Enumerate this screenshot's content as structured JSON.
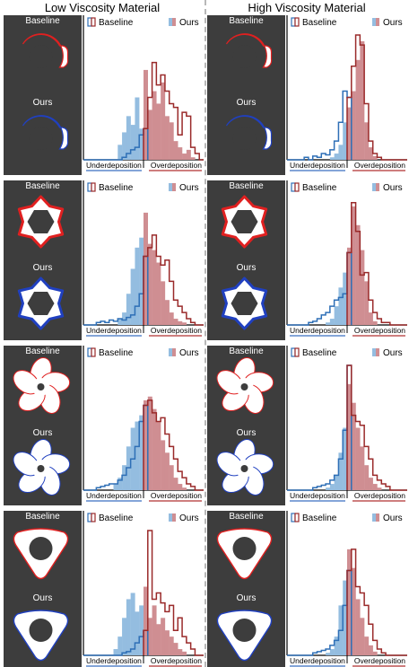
{
  "header": {
    "left_title": "Low Viscosity Material",
    "right_title": "High Viscosity Material"
  },
  "labels": {
    "baseline": "Baseline",
    "ours": "Ours",
    "legend_baseline": "Baseline",
    "legend_ours": "Ours",
    "under": "Underdeposition",
    "over": "Overdeposition"
  },
  "colors": {
    "panel_bg": "#3d3d3d",
    "baseline_outline": "#e02020",
    "ours_outline": "#2040c0",
    "hist_baseline_under": "#2e6fb6",
    "hist_baseline_over": "#9a2a2a",
    "hist_ours_under": "#94bde0",
    "hist_ours_over": "#cf8e92",
    "under_axis": "#3a6fc0",
    "over_axis": "#b03030"
  },
  "chart_data": [
    {
      "row": 0,
      "col": "low",
      "shape": "ring-notch",
      "type": "bar",
      "ours": [
        0,
        0,
        0,
        0,
        0,
        0,
        0,
        0,
        0.12,
        0.22,
        0.35,
        0.28,
        0.5,
        0.25,
        0.72,
        0.4,
        0.55,
        0.45,
        0.62,
        0.35,
        0.3,
        0.15,
        0.1,
        0.05,
        0.08,
        0.02,
        0,
        0
      ],
      "baseline": [
        0,
        0,
        0,
        0,
        0,
        0,
        0,
        0,
        0,
        0.02,
        0.05,
        0.08,
        0.1,
        0.2,
        0.25,
        0.5,
        0.78,
        0.6,
        0.68,
        0.55,
        0.45,
        0.42,
        0.2,
        0.38,
        0.35,
        0.1,
        0.05,
        0
      ]
    },
    {
      "row": 0,
      "col": "high",
      "shape": "ring-notch",
      "type": "bar",
      "ours": [
        0,
        0,
        0,
        0,
        0,
        0,
        0,
        0,
        0,
        0,
        0.02,
        0.05,
        0.12,
        0.3,
        0.42,
        0.55,
        0.8,
        0.95,
        0.3,
        0.1,
        0.03,
        0,
        0,
        0,
        0,
        0,
        0,
        0
      ],
      "baseline": [
        0,
        0,
        0,
        0,
        0.02,
        0,
        0.03,
        0.02,
        0.05,
        0.04,
        0.08,
        0.15,
        0.3,
        0.55,
        0.5,
        0.75,
        1.0,
        0.92,
        0.45,
        0.15,
        0.05,
        0.02,
        0,
        0,
        0,
        0,
        0,
        0
      ]
    },
    {
      "row": 1,
      "col": "low",
      "shape": "hexagon-gear",
      "type": "bar",
      "ours": [
        0,
        0,
        0,
        0,
        0,
        0,
        0,
        0,
        0.05,
        0.1,
        0.25,
        0.45,
        0.62,
        0.7,
        0.9,
        0.65,
        0.6,
        0.5,
        0.35,
        0.2,
        0.1,
        0.05,
        0.03,
        0.02,
        0,
        0,
        0,
        0
      ],
      "baseline": [
        0,
        0,
        0,
        0.02,
        0.03,
        0.02,
        0.04,
        0.03,
        0.05,
        0.04,
        0.06,
        0.08,
        0.15,
        0.25,
        0.55,
        0.62,
        0.72,
        0.55,
        0.48,
        0.52,
        0.35,
        0.2,
        0.15,
        0.1,
        0.05,
        0.02,
        0,
        0
      ]
    },
    {
      "row": 1,
      "col": "high",
      "shape": "hexagon-gear",
      "type": "bar",
      "ours": [
        0,
        0,
        0,
        0,
        0,
        0,
        0,
        0,
        0,
        0.02,
        0.05,
        0.15,
        0.3,
        0.42,
        0.62,
        0.95,
        0.8,
        0.6,
        0.35,
        0.1,
        0.03,
        0,
        0,
        0,
        0,
        0,
        0,
        0
      ],
      "baseline": [
        0,
        0,
        0,
        0,
        0,
        0.02,
        0.03,
        0.05,
        0.08,
        0.1,
        0.15,
        0.2,
        0.22,
        0.25,
        0.58,
        0.98,
        0.75,
        0.4,
        0.42,
        0.2,
        0.1,
        0.05,
        0.02,
        0.02,
        0,
        0,
        0,
        0
      ]
    },
    {
      "row": 2,
      "col": "low",
      "shape": "fan-blades",
      "type": "bar",
      "ours": [
        0,
        0,
        0,
        0,
        0,
        0,
        0,
        0.05,
        0.1,
        0.2,
        0.35,
        0.5,
        0.55,
        0.6,
        0.72,
        0.75,
        0.65,
        0.55,
        0.4,
        0.3,
        0.2,
        0.1,
        0.05,
        0.02,
        0,
        0,
        0,
        0
      ],
      "baseline": [
        0,
        0,
        0,
        0.02,
        0.03,
        0.04,
        0.05,
        0.05,
        0.08,
        0.12,
        0.18,
        0.25,
        0.35,
        0.55,
        0.68,
        0.72,
        0.62,
        0.55,
        0.58,
        0.45,
        0.35,
        0.25,
        0.15,
        0.1,
        0.05,
        0.03,
        0,
        0
      ]
    },
    {
      "row": 2,
      "col": "high",
      "shape": "fan-blades",
      "type": "bar",
      "ours": [
        0,
        0,
        0,
        0,
        0,
        0,
        0,
        0,
        0,
        0.02,
        0.05,
        0.12,
        0.3,
        0.5,
        0.85,
        0.7,
        0.5,
        0.35,
        0.2,
        0.1,
        0.05,
        0.02,
        0,
        0,
        0,
        0,
        0,
        0
      ],
      "baseline": [
        0,
        0,
        0,
        0,
        0,
        0,
        0.02,
        0.03,
        0.04,
        0.05,
        0.08,
        0.12,
        0.25,
        0.48,
        1.0,
        0.6,
        0.55,
        0.52,
        0.35,
        0.25,
        0.12,
        0.08,
        0.05,
        0.03,
        0,
        0,
        0,
        0
      ]
    },
    {
      "row": 3,
      "col": "low",
      "shape": "rounded-triangle",
      "type": "bar",
      "ours": [
        0,
        0,
        0,
        0,
        0,
        0,
        0,
        0.05,
        0.15,
        0.3,
        0.45,
        0.5,
        0.35,
        0.4,
        0.55,
        0.3,
        0.4,
        0.25,
        0.3,
        0.2,
        0.15,
        0.1,
        0.05,
        0.03,
        0,
        0,
        0,
        0
      ],
      "baseline": [
        0,
        0,
        0,
        0,
        0,
        0,
        0,
        0,
        0,
        0.02,
        0.03,
        0.05,
        0.1,
        0.15,
        0.2,
        1.0,
        0.45,
        0.5,
        0.42,
        0.35,
        0.4,
        0.2,
        0.3,
        0.15,
        0.1,
        0.05,
        0,
        0
      ]
    },
    {
      "row": 3,
      "col": "high",
      "shape": "rounded-triangle",
      "type": "bar",
      "ours": [
        0,
        0,
        0,
        0,
        0,
        0,
        0,
        0,
        0,
        0.02,
        0.05,
        0.15,
        0.4,
        0.6,
        0.85,
        0.7,
        0.45,
        0.3,
        0.15,
        0.08,
        0.03,
        0,
        0,
        0,
        0,
        0,
        0,
        0
      ],
      "baseline": [
        0,
        0,
        0,
        0,
        0,
        0,
        0.02,
        0.03,
        0.04,
        0.05,
        0.08,
        0.12,
        0.2,
        0.4,
        0.68,
        0.85,
        0.55,
        0.5,
        0.4,
        0.25,
        0.12,
        0.05,
        0.02,
        0,
        0,
        0,
        0,
        0
      ]
    }
  ]
}
